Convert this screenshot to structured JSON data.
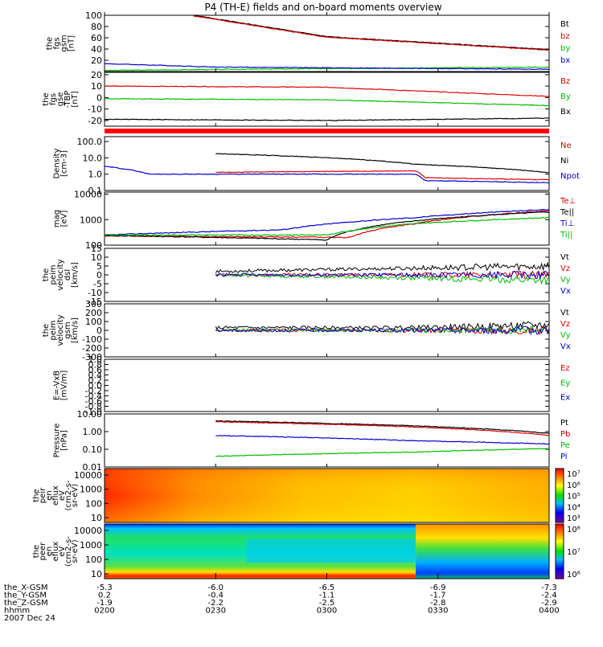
{
  "chart_data": {
    "type": "line",
    "title": "P4 (TH-E) fields and on-board moments overview",
    "panels": [
      {
        "id": "fgs_gsm",
        "ylabel": [
          "the",
          "fgs",
          "gsm",
          "[nT]"
        ],
        "ylim": [
          0,
          100
        ],
        "yticks": [
          "100",
          "80",
          "60",
          "40",
          "20"
        ],
        "series": [
          {
            "name": "Bt",
            "color": "#000000",
            "x": [
              0.2,
              0.5,
              1.0
            ],
            "y": [
              100,
              62,
              39
            ]
          },
          {
            "name": "bz",
            "color": "#dd0000",
            "x": [
              0.2,
              0.5,
              1.0
            ],
            "y": [
              99,
              61,
              38
            ]
          },
          {
            "name": "by",
            "color": "#00bb00",
            "x": [
              0.0,
              0.3,
              1.0
            ],
            "y": [
              2,
              4,
              8
            ]
          },
          {
            "name": "bx",
            "color": "#0000cc",
            "x": [
              0.0,
              0.25,
              1.0
            ],
            "y": [
              14,
              8,
              4
            ]
          }
        ]
      },
      {
        "id": "fgs_gse_tbp",
        "ylabel": [
          "the",
          "fgs",
          "gse",
          "-TBP",
          "[nT]"
        ],
        "ylim": [
          -25,
          22
        ],
        "yticks": [
          "20",
          "10",
          "0",
          "-10",
          "-20"
        ],
        "series": [
          {
            "name": "Bz",
            "color": "#dd0000",
            "x": [
              0.0,
              0.5,
              1.0
            ],
            "y": [
              10,
              9,
              1
            ]
          },
          {
            "name": "By",
            "color": "#00bb00",
            "x": [
              0.0,
              0.5,
              1.0
            ],
            "y": [
              -1,
              -2,
              -7
            ]
          },
          {
            "name": "Bx",
            "color": "#000000",
            "x": [
              0.0,
              0.5,
              1.0
            ],
            "y": [
              -19,
              -20,
              -18
            ]
          }
        ]
      },
      {
        "id": "density",
        "ylabel": [
          "Density",
          "[cm-3]"
        ],
        "ylim": [
          0.1,
          200
        ],
        "scale": "log",
        "yticks": [
          "100.0",
          "10.0",
          "1.0",
          "0.1"
        ],
        "series": [
          {
            "name": "Ne",
            "color": "#dd0000",
            "x": [
              0.25,
              0.7,
              0.72,
              1.0
            ],
            "y": [
              1.3,
              1.6,
              0.6,
              0.45
            ]
          },
          {
            "name": "Ni",
            "color": "#000000",
            "x": [
              0.25,
              0.7,
              1.0
            ],
            "y": [
              18,
              4,
              1.2
            ]
          },
          {
            "name": "Npot",
            "color": "#0000cc",
            "x": [
              0.0,
              0.1,
              0.7,
              0.72,
              1.0
            ],
            "y": [
              3,
              1.0,
              1.0,
              0.4,
              0.3
            ]
          }
        ]
      },
      {
        "id": "temperature",
        "ylabel": [
          "mag",
          "[eV]"
        ],
        "ylim": [
          100,
          12000
        ],
        "scale": "log",
        "yticks": [
          "10000",
          "1000",
          "100"
        ],
        "series": [
          {
            "name": "Te⊥",
            "color": "#dd0000",
            "x": [
              0.0,
              0.55,
              0.7,
              1.0
            ],
            "y": [
              230,
              200,
              700,
              2200
            ]
          },
          {
            "name": "Te||",
            "color": "#000000",
            "x": [
              0.0,
              0.5,
              0.7,
              1.0
            ],
            "y": [
              240,
              160,
              900,
              2000
            ]
          },
          {
            "name": "Ti⊥",
            "color": "#0000cc",
            "x": [
              0.0,
              0.4,
              0.7,
              1.0
            ],
            "y": [
              250,
              400,
              1200,
              2500
            ]
          },
          {
            "name": "Ti||",
            "color": "#00bb00",
            "x": [
              0.0,
              0.5,
              0.7,
              1.0
            ],
            "y": [
              250,
              250,
              700,
              1200
            ]
          }
        ]
      },
      {
        "id": "peim_velocity_dsl",
        "ylabel": [
          "the",
          "peim",
          "velocity",
          "dsl",
          "[km/s]"
        ],
        "ylim": [
          -15,
          15
        ],
        "yticks": [
          "15",
          "10",
          "5",
          "0",
          "-5",
          "-10",
          "-15"
        ],
        "series": [
          {
            "name": "Vt",
            "color": "#000000",
            "x": [
              0.25,
              1.0
            ],
            "y": [
              2,
              5
            ]
          },
          {
            "name": "Vz",
            "color": "#dd0000",
            "x": [
              0.25,
              1.0
            ],
            "y": [
              0,
              0
            ]
          },
          {
            "name": "Vy",
            "color": "#00bb00",
            "x": [
              0.25,
              1.0
            ],
            "y": [
              0,
              -3
            ]
          },
          {
            "name": "Vx",
            "color": "#0000cc",
            "x": [
              0.25,
              1.0
            ],
            "y": [
              0,
              0
            ]
          }
        ]
      },
      {
        "id": "peim_velocity_gsm",
        "ylabel": [
          "the",
          "peim",
          "velocity",
          "gsm",
          "[km/s]"
        ],
        "ylim": [
          -300,
          300
        ],
        "yticks": [
          "300",
          "200",
          "100",
          "0",
          "-100",
          "-200",
          "-300"
        ],
        "series": [
          {
            "name": "Vt",
            "color": "#000000",
            "x": [
              0.25,
              0.7,
              1.0
            ],
            "y": [
              30,
              30,
              60
            ]
          },
          {
            "name": "Vz",
            "color": "#dd0000",
            "x": [
              0.25,
              1.0
            ],
            "y": [
              0,
              0
            ]
          },
          {
            "name": "Vy",
            "color": "#00bb00",
            "x": [
              0.25,
              1.0
            ],
            "y": [
              0,
              0
            ]
          },
          {
            "name": "Vx",
            "color": "#0000cc",
            "x": [
              0.25,
              1.0
            ],
            "y": [
              0,
              0
            ]
          }
        ]
      },
      {
        "id": "efield",
        "ylabel": [
          "E=-VxB",
          "[mV/m]"
        ],
        "ylim": [
          -1,
          1
        ],
        "yticks": [
          "1.0",
          "0.8",
          "0.6",
          "0.4",
          "0.2",
          "0.0",
          "-0.2",
          "-0.4",
          "-0.6",
          "-0.8",
          "-1.0"
        ],
        "series": [
          {
            "name": "Ez",
            "color": "#dd0000",
            "x": [],
            "y": []
          },
          {
            "name": "Ey",
            "color": "#00bb00",
            "x": [],
            "y": []
          },
          {
            "name": "Ex",
            "color": "#0000cc",
            "x": [],
            "y": []
          }
        ]
      },
      {
        "id": "pressure",
        "ylabel": [
          "Pressure",
          "[nPa]"
        ],
        "ylim": [
          0.01,
          10
        ],
        "scale": "log",
        "yticks": [
          "10.00",
          "1.00",
          "0.10",
          "0.01"
        ],
        "series": [
          {
            "name": "Pt",
            "color": "#000000",
            "x": [
              0.25,
              1.0
            ],
            "y": [
              4.0,
              0.8
            ]
          },
          {
            "name": "Pb",
            "color": "#dd0000",
            "x": [
              0.25,
              1.0
            ],
            "y": [
              3.6,
              0.6
            ]
          },
          {
            "name": "Pe",
            "color": "#00bb00",
            "x": [
              0.25,
              0.7,
              1.0
            ],
            "y": [
              0.04,
              0.07,
              0.11
            ]
          },
          {
            "name": "Pi",
            "color": "#0000cc",
            "x": [
              0.25,
              0.7,
              1.0
            ],
            "y": [
              0.6,
              0.3,
              0.2
            ]
          }
        ]
      }
    ],
    "spectrograms": [
      {
        "id": "peir",
        "type": "heatmap",
        "ylabel": [
          "the",
          "peir",
          "en",
          "eflux",
          "eV",
          "(cm2-s-",
          "sr-eV)"
        ],
        "scale": "log",
        "yticks": [
          "10000",
          "1000",
          "100",
          "10"
        ],
        "colorbar_ticks": [
          "10⁷",
          "10⁶",
          "10⁵",
          "10⁴",
          "10³"
        ]
      },
      {
        "id": "peer",
        "type": "heatmap",
        "ylabel": [
          "the",
          "peer",
          "en",
          "eflux",
          "eV",
          "(cm2-s-",
          "sr-eV)"
        ],
        "scale": "log",
        "yticks": [
          "10000",
          "1000",
          "100",
          "10"
        ],
        "colorbar_ticks": [
          "10⁸",
          "10⁷",
          "10⁶"
        ]
      }
    ],
    "xaxis": {
      "tick_rows": [
        {
          "label": "the_X-GSM",
          "values": [
            "-5.3",
            "-6.0",
            "-6.5",
            "-6.9",
            "-7.3"
          ]
        },
        {
          "label": "the_Y-GSM",
          "values": [
            "0.2",
            "-0.4",
            "-1.1",
            "-1.7",
            "-2.4"
          ]
        },
        {
          "label": "the_Z-GSM",
          "values": [
            "-1.9",
            "-2.2",
            "-2.5",
            "-2.8",
            "-2.9"
          ]
        },
        {
          "label": "hhmm",
          "values": [
            "0200",
            "0230",
            "0300",
            "0330",
            "0400"
          ]
        }
      ],
      "date": "2007 Dec 24"
    }
  }
}
